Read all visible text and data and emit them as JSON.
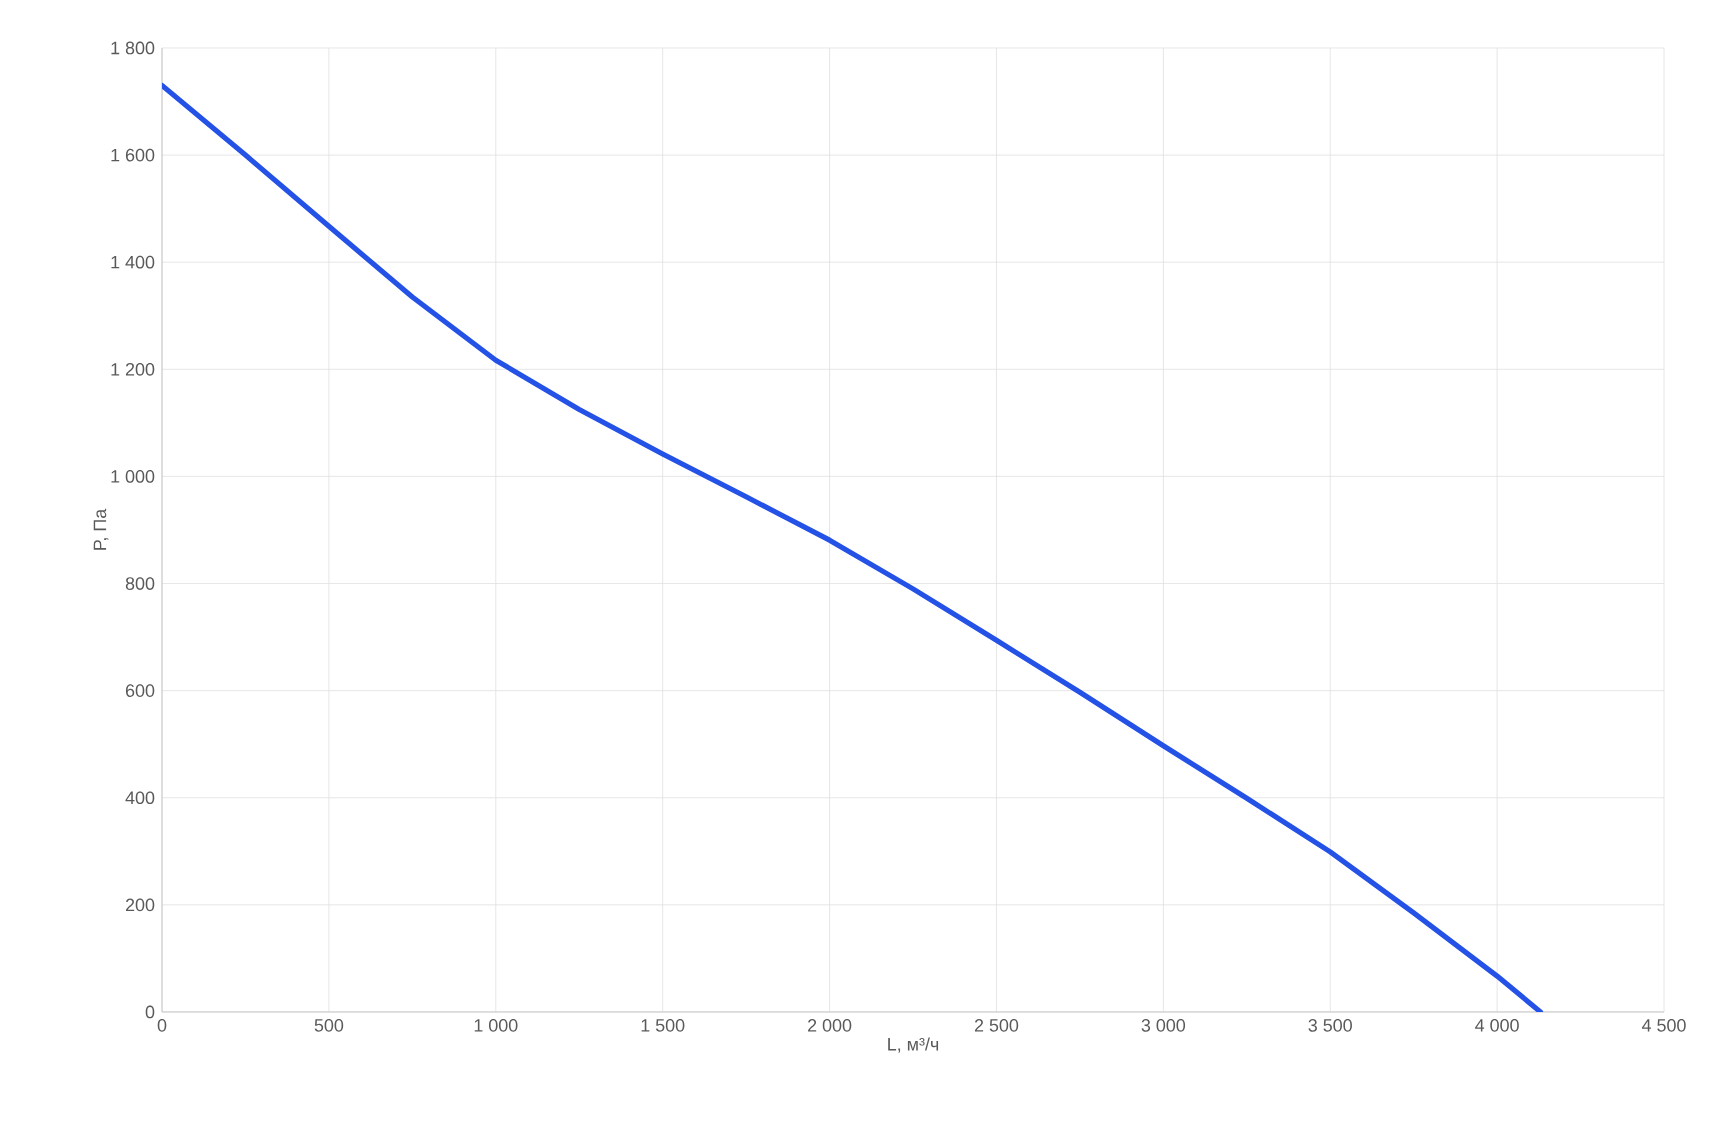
{
  "chart_data": {
    "type": "line",
    "xlabel": "L, м³/ч",
    "ylabel": "P, Па",
    "x": [
      0,
      250,
      500,
      750,
      1000,
      1250,
      1500,
      1750,
      2000,
      2250,
      2500,
      2750,
      3000,
      3250,
      3500,
      3750,
      4000,
      4130
    ],
    "series": [
      {
        "color": "#2451e6",
        "values": [
          1730,
          1600,
          1467,
          1335,
          1217,
          1125,
          1042,
          962,
          881,
          790,
          694,
          597,
          497,
          399,
          299,
          185,
          67,
          0
        ]
      }
    ],
    "xlim": [
      0,
      4500
    ],
    "ylim": [
      0,
      1800
    ],
    "xticks": [
      0,
      500,
      {
        "value": 1000,
        "label": "1 000"
      },
      {
        "value": 1500,
        "label": "1 500"
      },
      {
        "value": 2000,
        "label": "2 000"
      },
      {
        "value": 2500,
        "label": "2 500"
      },
      {
        "value": 3000,
        "label": "3 000"
      },
      {
        "value": 3500,
        "label": "3 500"
      },
      {
        "value": 4000,
        "label": "4 000"
      },
      {
        "value": 4500,
        "label": "4 500"
      }
    ],
    "yticks": [
      0,
      200,
      400,
      600,
      800,
      {
        "value": 1000,
        "label": "1 000"
      },
      {
        "value": 1200,
        "label": "1 200"
      },
      {
        "value": 1400,
        "label": "1 400"
      },
      {
        "value": 1600,
        "label": "1 600"
      },
      {
        "value": 1800,
        "label": "1 800"
      }
    ],
    "grid": true,
    "marker": "none",
    "line_style": "solid"
  }
}
